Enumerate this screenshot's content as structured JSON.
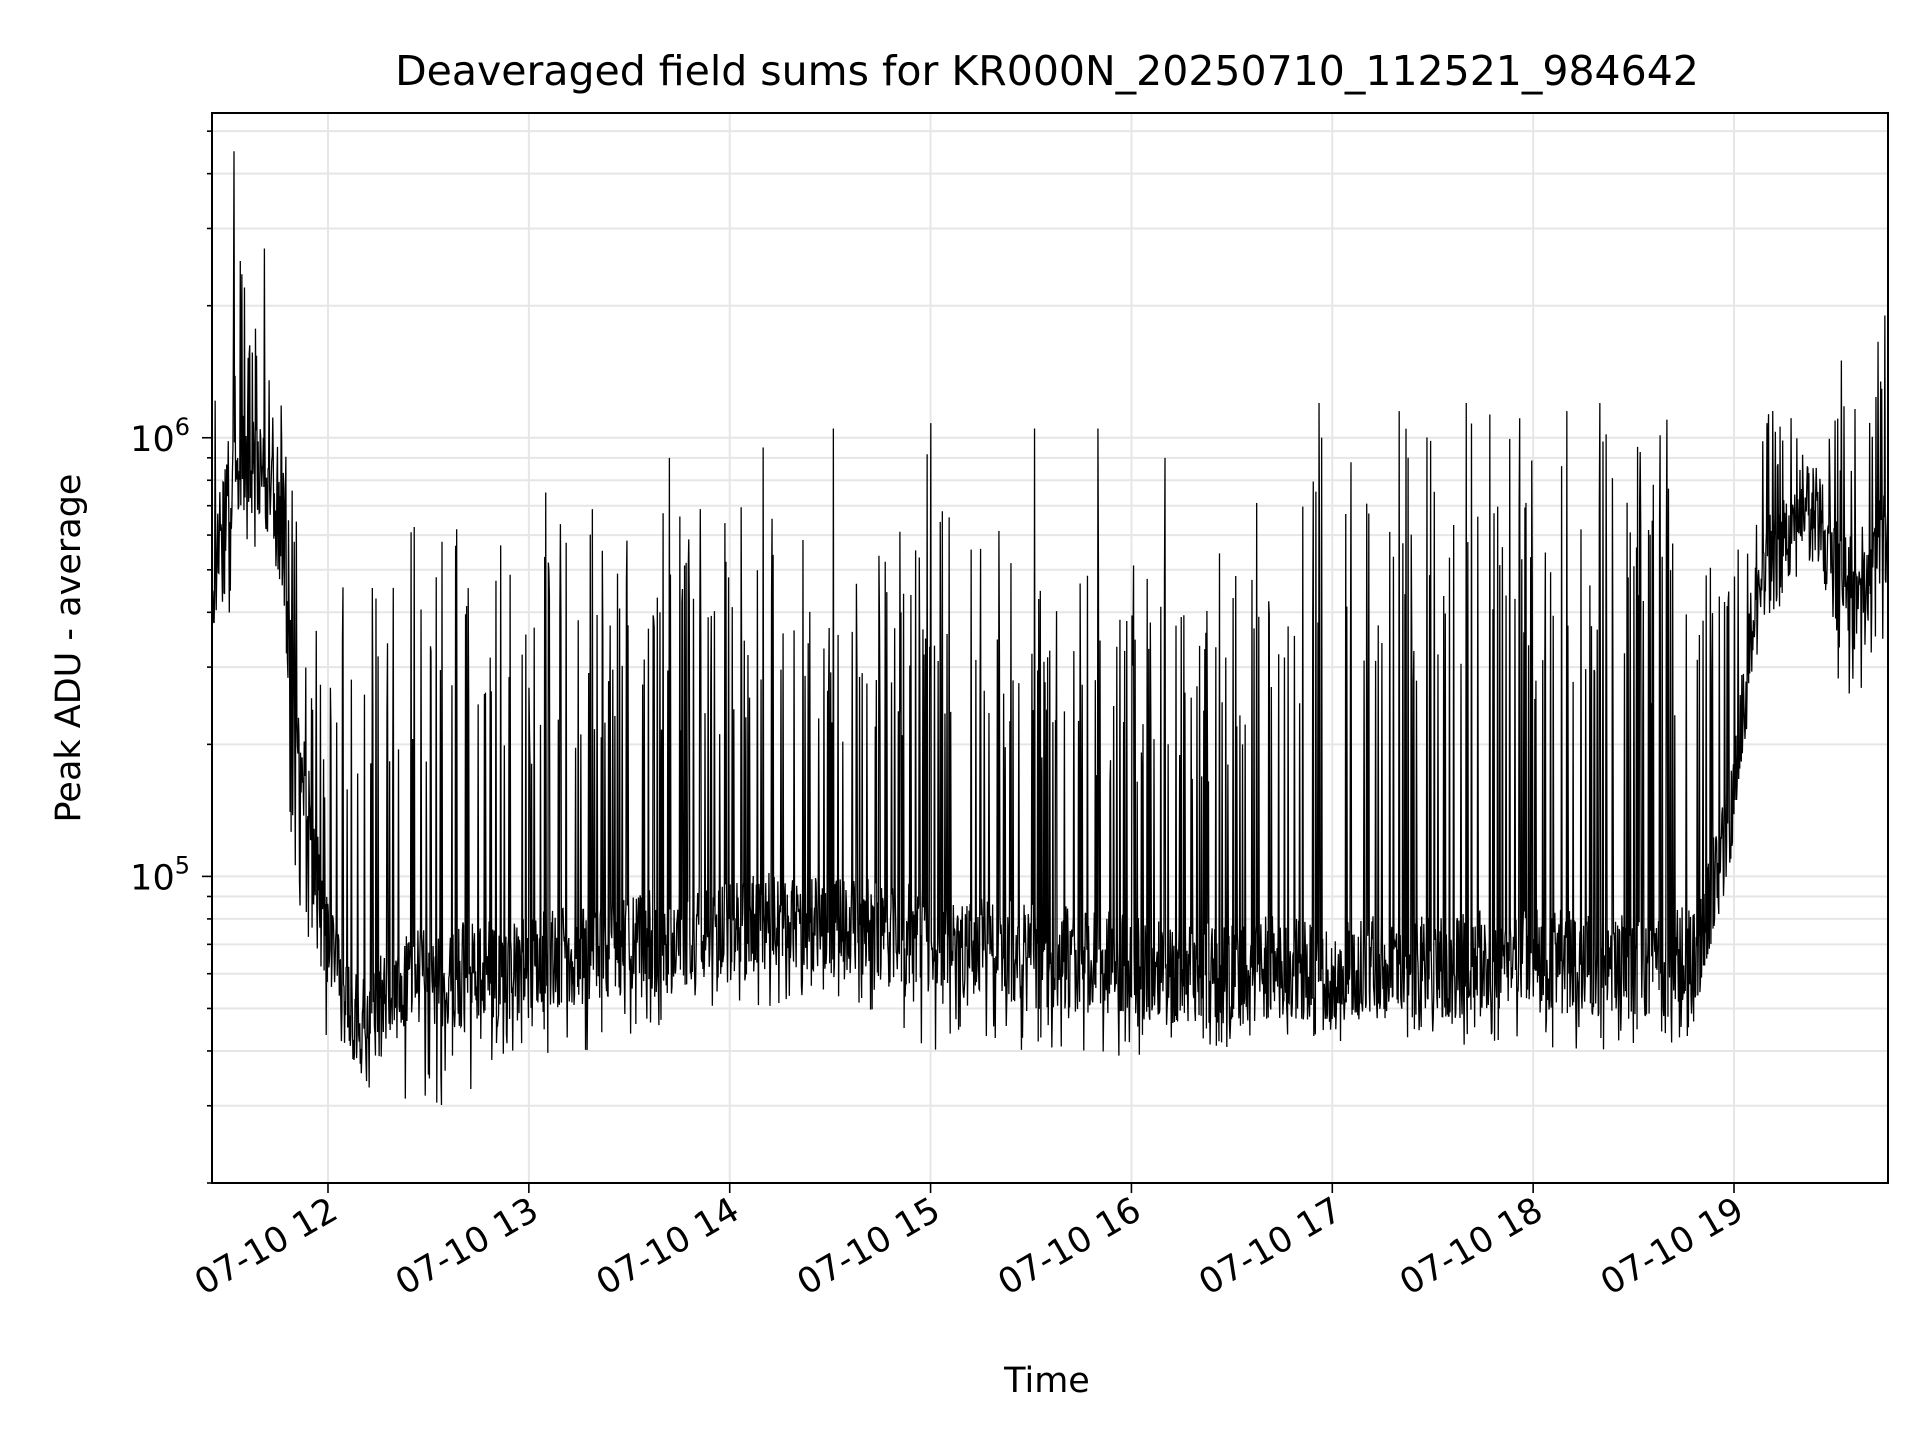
{
  "chart_data": {
    "type": "line",
    "title": "Deaveraged field sums for KR000N_20250710_112521_984642",
    "xlabel": "Time",
    "ylabel": "Peak ADU - average",
    "yscale": "log",
    "ylim": [
      20000,
      5500000
    ],
    "xlim": [
      "2025-07-10 11:25:21",
      "2025-07-10 19:46:00"
    ],
    "x_ticks": [
      {
        "value": "2025-07-10 12:00",
        "label": "07-10 12"
      },
      {
        "value": "2025-07-10 13:00",
        "label": "07-10 13"
      },
      {
        "value": "2025-07-10 14:00",
        "label": "07-10 14"
      },
      {
        "value": "2025-07-10 15:00",
        "label": "07-10 15"
      },
      {
        "value": "2025-07-10 16:00",
        "label": "07-10 16"
      },
      {
        "value": "2025-07-10 17:00",
        "label": "07-10 17"
      },
      {
        "value": "2025-07-10 18:00",
        "label": "07-10 18"
      },
      {
        "value": "2025-07-10 19:00",
        "label": "07-10 19"
      }
    ],
    "y_ticks": [
      {
        "value": 100000,
        "base": "10",
        "exp": "5"
      },
      {
        "value": 1000000,
        "base": "10",
        "exp": "6"
      }
    ],
    "grid": true,
    "series": [
      {
        "color": "#000000",
        "x": [
          "11:25",
          "11:30",
          "11:35",
          "11:40",
          "11:45",
          "11:50",
          "11:55",
          "12:00",
          "12:05",
          "12:10",
          "12:15",
          "12:20",
          "12:25",
          "12:30",
          "12:35",
          "12:40",
          "12:45",
          "12:50",
          "12:55",
          "13:00",
          "13:10",
          "13:20",
          "13:30",
          "13:40",
          "13:50",
          "14:00",
          "14:10",
          "14:20",
          "14:30",
          "14:40",
          "14:50",
          "15:00",
          "15:10",
          "15:20",
          "15:30",
          "15:40",
          "15:50",
          "16:00",
          "16:10",
          "16:20",
          "16:30",
          "16:40",
          "16:50",
          "17:00",
          "17:10",
          "17:20",
          "17:30",
          "17:40",
          "17:50",
          "18:00",
          "18:10",
          "18:20",
          "18:30",
          "18:40",
          "18:50",
          "19:00",
          "19:05",
          "19:10",
          "19:15",
          "19:20",
          "19:25",
          "19:30",
          "19:35",
          "19:40",
          "19:45"
        ],
        "baseline": [
          450000,
          750000,
          900000,
          850000,
          650000,
          250000,
          120000,
          70000,
          50000,
          45000,
          50000,
          55000,
          60000,
          60000,
          58000,
          60000,
          62000,
          60000,
          60000,
          62000,
          65000,
          68000,
          70000,
          72000,
          74000,
          75000,
          78000,
          80000,
          78000,
          76000,
          74000,
          72000,
          70000,
          68000,
          66000,
          65000,
          64000,
          62000,
          60000,
          60000,
          60000,
          62000,
          62000,
          62000,
          62000,
          62000,
          62000,
          64000,
          64000,
          64000,
          64000,
          63000,
          62000,
          62000,
          70000,
          150000,
          350000,
          500000,
          550000,
          650000,
          650000,
          500000,
          450000,
          500000,
          600000
        ],
        "peak_envelope": [
          1200000,
          2500000,
          2600000,
          2000000,
          1400000,
          700000,
          400000,
          300000,
          600000,
          620000,
          600000,
          650000,
          650000,
          650000,
          650000,
          650000,
          620000,
          620000,
          640000,
          650000,
          700000,
          700000,
          700000,
          700000,
          700000,
          700000,
          700000,
          680000,
          600000,
          500000,
          600000,
          1050000,
          800000,
          700000,
          600000,
          500000,
          500000,
          550000,
          500000,
          550000,
          600000,
          900000,
          1000000,
          1200000,
          1000000,
          1100000,
          1200000,
          1150000,
          1150000,
          1100000,
          1200000,
          1250000,
          1200000,
          1100000,
          900000,
          700000,
          900000,
          1150000,
          1300000,
          1000000,
          800000,
          1200000,
          1400000,
          1500000,
          1800000
        ],
        "dip_envelope": [
          350000,
          300000,
          600000,
          500000,
          300000,
          100000,
          60000,
          30000,
          30000,
          32000,
          32000,
          32000,
          30000,
          30000,
          30000,
          30000,
          32000,
          38000,
          40000,
          40000,
          38000,
          40000,
          40000,
          45000,
          50000,
          50000,
          50000,
          52000,
          50000,
          48000,
          45000,
          40000,
          40000,
          40000,
          40000,
          38000,
          38000,
          38000,
          40000,
          40000,
          40000,
          40000,
          42000,
          42000,
          42000,
          42000,
          42000,
          40000,
          40000,
          40000,
          40000,
          40000,
          40000,
          40000,
          45000,
          120000,
          300000,
          450000,
          500000,
          600000,
          600000,
          280000,
          250000,
          250000,
          220000
        ],
        "spikes": [
          {
            "x": "11:32",
            "value": 4500000
          },
          {
            "x": "11:35",
            "value": 2200000
          },
          {
            "x": "11:41",
            "value": 2700000
          },
          {
            "x": "13:05",
            "value": 750000
          },
          {
            "x": "13:42",
            "value": 900000
          },
          {
            "x": "14:10",
            "value": 950000
          },
          {
            "x": "14:31",
            "value": 1050000
          },
          {
            "x": "15:00",
            "value": 1080000
          },
          {
            "x": "15:31",
            "value": 1050000
          },
          {
            "x": "15:50",
            "value": 1050000
          },
          {
            "x": "16:10",
            "value": 900000
          },
          {
            "x": "16:56",
            "value": 1200000
          },
          {
            "x": "17:20",
            "value": 1150000
          },
          {
            "x": "17:40",
            "value": 1200000
          },
          {
            "x": "18:10",
            "value": 1150000
          },
          {
            "x": "18:20",
            "value": 1200000
          },
          {
            "x": "18:40",
            "value": 1100000
          },
          {
            "x": "19:32",
            "value": 1500000
          },
          {
            "x": "19:45",
            "value": 1900000
          }
        ]
      }
    ]
  }
}
